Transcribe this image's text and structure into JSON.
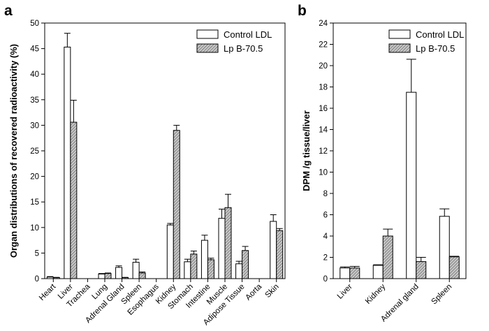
{
  "chart_data": [
    {
      "panel": "a",
      "type": "bar",
      "ylabel": "Organ distributions of recovered radioactivity (%)",
      "ylim": [
        0,
        50
      ],
      "yticks": [
        0,
        5,
        10,
        15,
        20,
        25,
        30,
        35,
        40,
        45,
        50
      ],
      "categories": [
        "Heart",
        "Liver",
        "Trachea",
        "Lung",
        "Adrenal Gland",
        "Spleen",
        "Esophagus",
        "Kidney",
        "Stomach",
        "Intestine",
        "Muscle",
        "Adipose Tissue",
        "Aorta",
        "Skin"
      ],
      "series": [
        {
          "name": "Control LDL",
          "style": "open",
          "values": [
            0.3,
            45.3,
            0.0,
            0.9,
            2.2,
            3.2,
            0.0,
            10.5,
            3.3,
            7.5,
            11.8,
            2.9,
            0.0,
            11.2
          ],
          "errors": [
            0.1,
            2.7,
            0.0,
            0.1,
            0.3,
            0.6,
            0.0,
            0.3,
            0.5,
            1.0,
            1.8,
            0.5,
            0.0,
            1.3
          ]
        },
        {
          "name": "Lp B-70.5",
          "style": "hatched",
          "values": [
            0.2,
            30.6,
            0.0,
            1.0,
            0.2,
            1.1,
            0.0,
            29.0,
            4.8,
            3.7,
            13.9,
            5.5,
            0.0,
            9.4
          ],
          "errors": [
            0.05,
            4.3,
            0.0,
            0.1,
            0.05,
            0.2,
            0.0,
            1.0,
            0.6,
            0.3,
            2.6,
            0.8,
            0.0,
            0.4
          ]
        }
      ],
      "legend": "top-right"
    },
    {
      "panel": "b",
      "type": "bar",
      "ylabel": "DPM /g tissue/liver",
      "ylim": [
        0,
        24
      ],
      "yticks": [
        0,
        2,
        4,
        6,
        8,
        10,
        12,
        14,
        16,
        18,
        20,
        22,
        24
      ],
      "categories": [
        "Liver",
        "Kidney",
        "Adrenal gland",
        "Spleen"
      ],
      "series": [
        {
          "name": "Control LDL",
          "style": "open",
          "values": [
            1.0,
            1.25,
            17.5,
            5.85
          ],
          "errors": [
            0.1,
            0.05,
            3.1,
            0.7
          ]
        },
        {
          "name": "Lp B-70.5",
          "style": "hatched",
          "values": [
            1.0,
            4.0,
            1.6,
            2.05
          ],
          "errors": [
            0.15,
            0.65,
            0.4,
            0.05
          ]
        }
      ],
      "legend": "top-right"
    }
  ],
  "panel_letters": [
    "a",
    "b"
  ]
}
